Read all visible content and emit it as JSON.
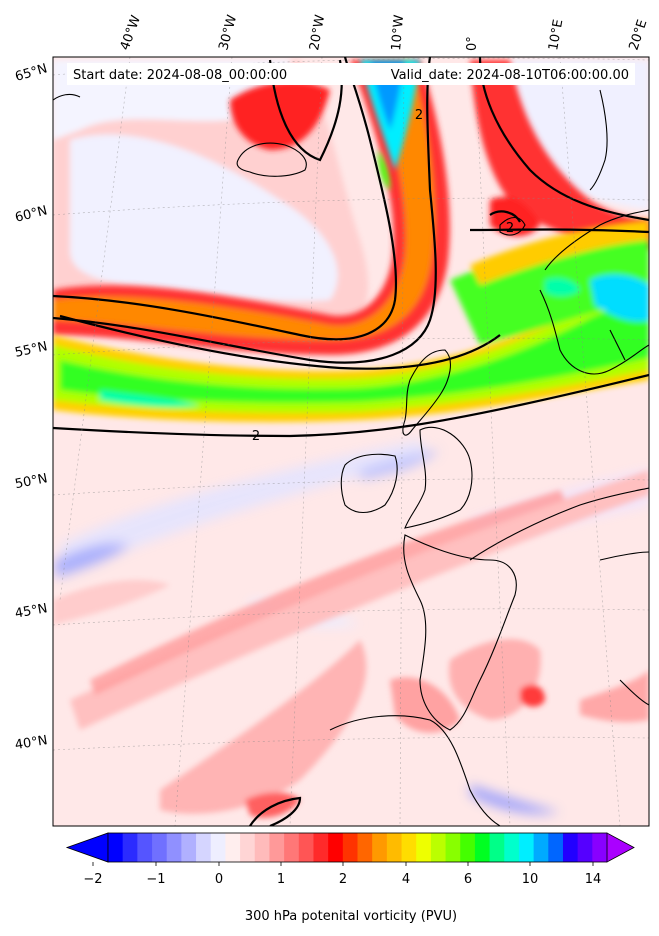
{
  "map": {
    "start_label": "Start date: 2024-08-08_00:00:00",
    "valid_label": "Valid_date: 2024-08-10T06:00:00.00",
    "contour_label_1": "2",
    "contour_label_2": "2",
    "contour_label_3": "2",
    "lat_labels": [
      "65°N",
      "60°N",
      "55°N",
      "50°N",
      "45°N",
      "40°N"
    ],
    "lon_labels": [
      "40°W",
      "30°W",
      "20°W",
      "10°W",
      "0°",
      "10°E",
      "20°E"
    ]
  },
  "colorbar": {
    "title": "300 hPa potenital vorticity (PVU)",
    "tick_labels": [
      "−2",
      "−1",
      "0",
      "1",
      "2",
      "4",
      "6",
      "10",
      "14"
    ],
    "colors": [
      "#0000ff",
      "#2b2bff",
      "#5555ff",
      "#7070ff",
      "#9090ff",
      "#b0b0ff",
      "#d5d5ff",
      "#eeeeff",
      "#ffeeee",
      "#ffd5d5",
      "#ffbbbb",
      "#ff9999",
      "#ff7777",
      "#ff5555",
      "#ff2a2a",
      "#ff0000",
      "#ff3300",
      "#ff6600",
      "#ff9900",
      "#ffbb00",
      "#ffdd00",
      "#eeff00",
      "#bbff00",
      "#88ff00",
      "#44ff00",
      "#00ff22",
      "#00ff88",
      "#00ffcc",
      "#00eeff",
      "#00aaff",
      "#0066ff",
      "#2200ff",
      "#5500ff",
      "#8800ff"
    ],
    "extend_min_color": "#0000ff",
    "extend_max_color": "#aa00ff"
  }
}
